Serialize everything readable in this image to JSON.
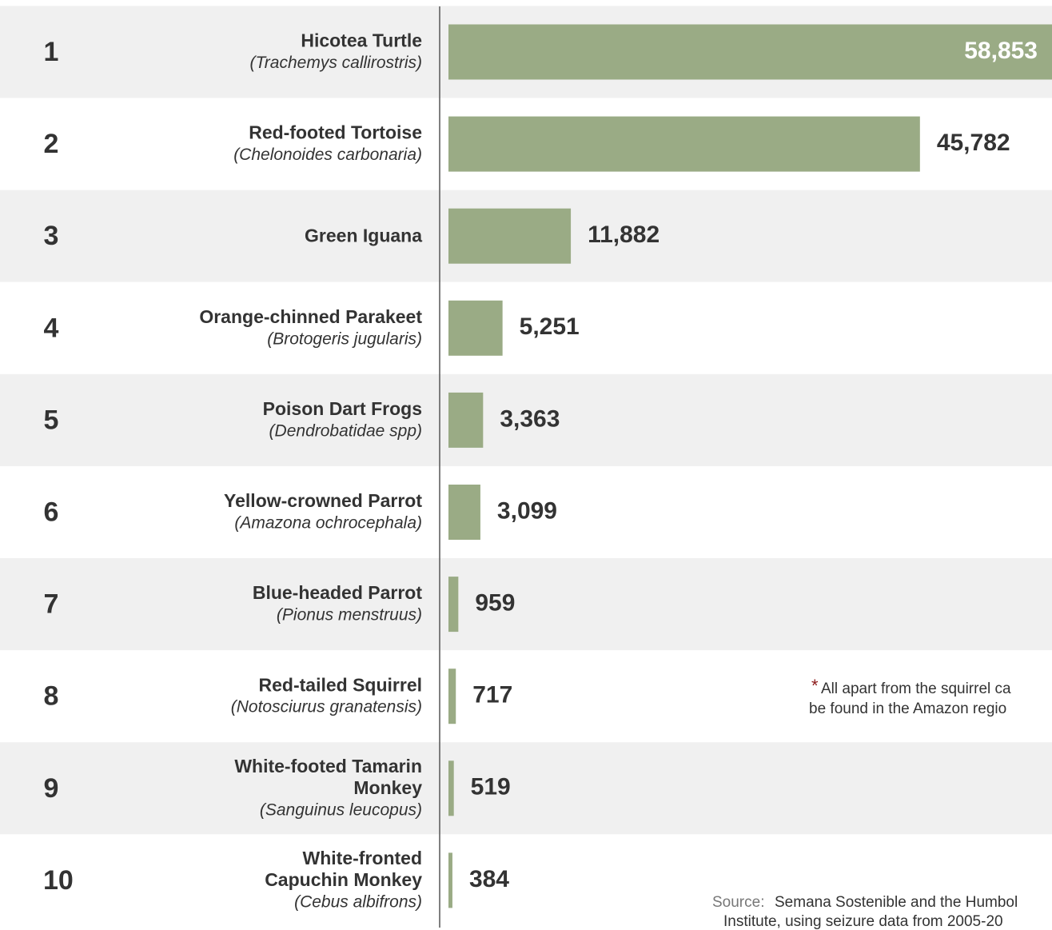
{
  "chart_data": {
    "type": "bar",
    "orientation": "horizontal",
    "ranks": [
      "1",
      "2",
      "3",
      "4",
      "5",
      "6",
      "7",
      "8",
      "9",
      "10"
    ],
    "categories": [
      "Hicotea Turtle",
      "Red-footed Tortoise",
      "Green Iguana",
      "Orange-chinned Parakeet",
      "Poison Dart Frogs",
      "Yellow-crowned Parrot",
      "Blue-headed Parrot",
      "Red-tailed Squirrel",
      "White-footed Tamarin Monkey",
      "White-fronted Capuchin Monkey"
    ],
    "scientific_names": [
      "(Trachemys callirostris)",
      "(Chelonoides carbonaria)",
      null,
      "(Brotogeris jugularis)",
      "(Dendrobatidae spp)",
      "(Amazona ochrocephala)",
      "(Pionus menstruus)",
      "(Notosciurus granatensis)",
      "(Sanguinus leucopus)",
      "(Cebus albifrons)"
    ],
    "values": [
      58853,
      45782,
      11882,
      5251,
      3363,
      3099,
      959,
      717,
      519,
      384
    ],
    "value_labels": [
      "58,853",
      "45,782",
      "11,882",
      "5,251",
      "3,363",
      "3,099",
      "959",
      "717",
      "519",
      "384"
    ],
    "color": "#9aab85",
    "xlim": [
      0,
      60000
    ],
    "note_marker": "*",
    "note": [
      "All apart from the squirrel ca",
      "be found in the Amazon regio"
    ],
    "source_label": "Source:",
    "source": [
      "Semana Sostenible and the Humbol",
      "Institute, using seizure data from 2005-20"
    ]
  }
}
